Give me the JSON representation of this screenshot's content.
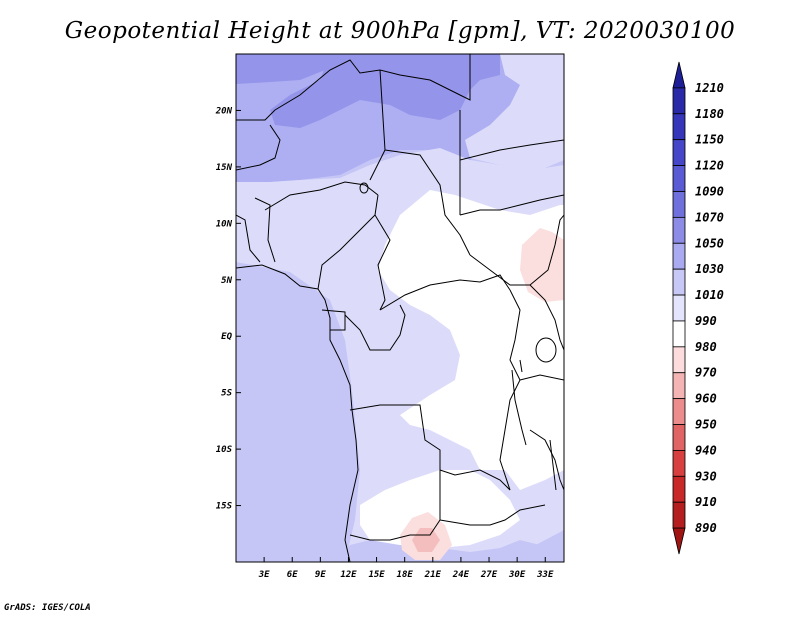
{
  "title": "Geopotential Height at 900hPa [gpm], VT: 2020030100",
  "credit": "GrADS: IGES/COLA",
  "map": {
    "lon_range": [
      0,
      35
    ],
    "lat_range": [
      -20,
      25
    ],
    "lon_ticks": [
      3,
      6,
      9,
      12,
      15,
      18,
      21,
      24,
      27,
      30,
      33
    ],
    "lon_tick_labels": [
      "3E",
      "6E",
      "9E",
      "12E",
      "15E",
      "18E",
      "21E",
      "24E",
      "27E",
      "30E",
      "33E"
    ],
    "lat_ticks": [
      20,
      15,
      10,
      5,
      0,
      -5,
      -10,
      -15
    ],
    "lat_tick_labels": [
      "20N",
      "15N",
      "10N",
      "5N",
      "EQ",
      "5S",
      "10S",
      "15S"
    ]
  },
  "colorbar": {
    "levels": [
      "1210",
      "1180",
      "1150",
      "1120",
      "1090",
      "1070",
      "1050",
      "1030",
      "1010",
      "990",
      "980",
      "970",
      "960",
      "950",
      "940",
      "930",
      "910",
      "890"
    ],
    "colors": [
      "#1e1e96",
      "#2a2aa8",
      "#3636bb",
      "#4646c8",
      "#5a5ad4",
      "#7070dc",
      "#8c8ce6",
      "#aaaaf0",
      "#c8c8f6",
      "#e4e4fc",
      "#ffffff",
      "#fcdcdc",
      "#f4b4b4",
      "#ec8c8c",
      "#e06464",
      "#d84040",
      "#c82828",
      "#b41e1e",
      "#a01414"
    ]
  },
  "palette": {
    "c1090": "#9494ea",
    "c1070": "#aeaef2",
    "c1050": "#c6c6f6",
    "c1030": "#dcdcfa",
    "c1010": "#ffffff",
    "c990": "#fbdede",
    "c980": "#f4bebe"
  }
}
